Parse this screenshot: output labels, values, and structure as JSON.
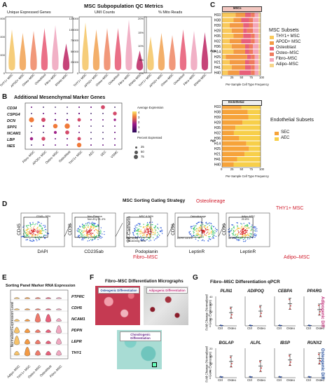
{
  "panels": {
    "A": {
      "letter": "A",
      "title": "MSC Subpopulation QC Metrics",
      "subplots": [
        {
          "title": "Unique Expressed Genes",
          "yticks": [
            "6000",
            "4000",
            "2000",
            "0"
          ]
        },
        {
          "title": "UMI Counts",
          "yticks": [
            "125000",
            "100000",
            "75000",
            "50000",
            "25000",
            "0"
          ]
        },
        {
          "title": "% Mito Reads",
          "yticks": [
            "20%",
            "15%",
            "10%",
            "5%",
            "0%"
          ]
        }
      ],
      "categories": [
        "THY1+ MSC",
        "APOD+ MSC",
        "Osteo–MSC",
        "Osteoblast",
        "Fibro–MSC",
        "RNAlo MSC"
      ],
      "colors": [
        "#f5c86b",
        "#f2a65a",
        "#ef8d6b",
        "#e8607a",
        "#f0a8c0",
        "#c0306a"
      ]
    },
    "B": {
      "letter": "B",
      "title": "Additional Mesenchymal Marker Genes",
      "genes": [
        "CD34",
        "CSPG4",
        "DCN",
        "SPP1",
        "NCAM1",
        "LBP",
        "NES"
      ],
      "columns": [
        "Fibro–MSC",
        "APOD+ MSC",
        "Osteo–MSC",
        "Osteoblast",
        "THY1+ MSC",
        "AEC",
        "SEC",
        "VSMC"
      ],
      "legend_expr_title": "Average Expression",
      "legend_expr_ticks": [
        "4",
        "3",
        "2",
        "1",
        "0"
      ],
      "legend_pct_title": "Percent Expressed",
      "legend_pct_ticks": [
        "25",
        "50",
        "75"
      ]
    },
    "C": {
      "letter": "C",
      "top_title": "MSCs",
      "bottom_title": "Endothelial",
      "samples": [
        "H33",
        "H38",
        "H39",
        "H28",
        "H35",
        "H32",
        "H36",
        "H14",
        "H25",
        "H21",
        "H41",
        "H40"
      ],
      "age_label": "Age",
      "xticks": [
        "0",
        "25",
        "50",
        "75",
        "100"
      ],
      "xlabel": "Per-Sample Cell Type Frequency",
      "msc_legend_title": "MSC Subsets",
      "msc_legend": [
        {
          "label": "THY1+ MSC",
          "color": "#f9c95a"
        },
        {
          "label": "APOD+ MSC",
          "color": "#f39a44"
        },
        {
          "label": "Osteoblast",
          "color": "#e8607a"
        },
        {
          "label": "Osteo–MSC",
          "color": "#ef7b5e"
        },
        {
          "label": "Fibro–MSC",
          "color": "#f4a6b8"
        },
        {
          "label": "Adipo–MSC",
          "color": "#f6d58a"
        }
      ],
      "endo_legend_title": "Endothelial Subsets",
      "endo_legend": [
        {
          "label": "SEC",
          "color": "#f6a33a"
        },
        {
          "label": "AEC",
          "color": "#f7cf4a"
        }
      ]
    },
    "D": {
      "letter": "D",
      "title": "MSC Sorting Gating Strategy",
      "plots": [
        {
          "ylabel": "CD45",
          "xlabel": "DAPI",
          "gate": "CD45– 95%"
        },
        {
          "ylabel": "CD38",
          "xlabel": "CD235ab",
          "gate": "Non-Plasma Non-Ery 91.4%"
        },
        {
          "ylabel": "VE-Cadherin",
          "xlabel": "Podoplanin",
          "gate": "MSC 6.56%",
          "gate2": "PDPNneg VECADneg 90%"
        },
        {
          "ylabel": "CD56",
          "xlabel": "LeptinR",
          "gate": "Osteolineage",
          "gate2": "LEPR 13.4%"
        },
        {
          "ylabel": "CD90",
          "xlabel": "LeptinR",
          "gate": "Adipo-MSC 20.8%",
          "gate2": "42.6%"
        }
      ],
      "callouts": {
        "osteo": "Osteolineage",
        "thy1": "THY1+ MSC",
        "fibro": "Fibro–MSC",
        "adipo": "Adipo–MSC"
      }
    },
    "E": {
      "letter": "E",
      "title": "Sorting Panel Marker RNA Expression",
      "ylabel": "Normalized Expression Level",
      "genes": [
        "PTPRC",
        "CDH5",
        "NCAM1",
        "PDPN",
        "LEPR",
        "THY1"
      ],
      "categories": [
        "Adipo–MSC",
        "THY1+ MSC",
        "Osteo–MSC",
        "Osteoblast",
        "Fibro–MSC"
      ]
    },
    "F": {
      "letter": "F",
      "title": "Fibro–MSC Differentiation Micrographs",
      "labels": [
        "Osteogenic Differentiation",
        "Adipogenic Differentiation",
        "Chondrogenic Differentiation"
      ]
    },
    "G": {
      "letter": "G",
      "title": "Fibro–MSC Differentiation qPCR",
      "ylabel": "Fold Change (Normalized Gene Expression)",
      "xcats": [
        "Ctrl",
        "Osteo"
      ],
      "genes_top": [
        "PLIN1",
        "ADIPOQ",
        "CEBPA",
        "PPARG"
      ],
      "genes_bottom": [
        "BGLAP",
        "ALPL",
        "IBSP",
        "RUNX2"
      ],
      "side_top": "Adipogenic Diff.",
      "side_bottom": "Osteogenic Diff.",
      "yticks_top": [
        "40",
        "30",
        "20",
        "10",
        "0"
      ],
      "yticks_bottom": [
        "20",
        "15",
        "10",
        "5",
        "0"
      ]
    }
  }
}
